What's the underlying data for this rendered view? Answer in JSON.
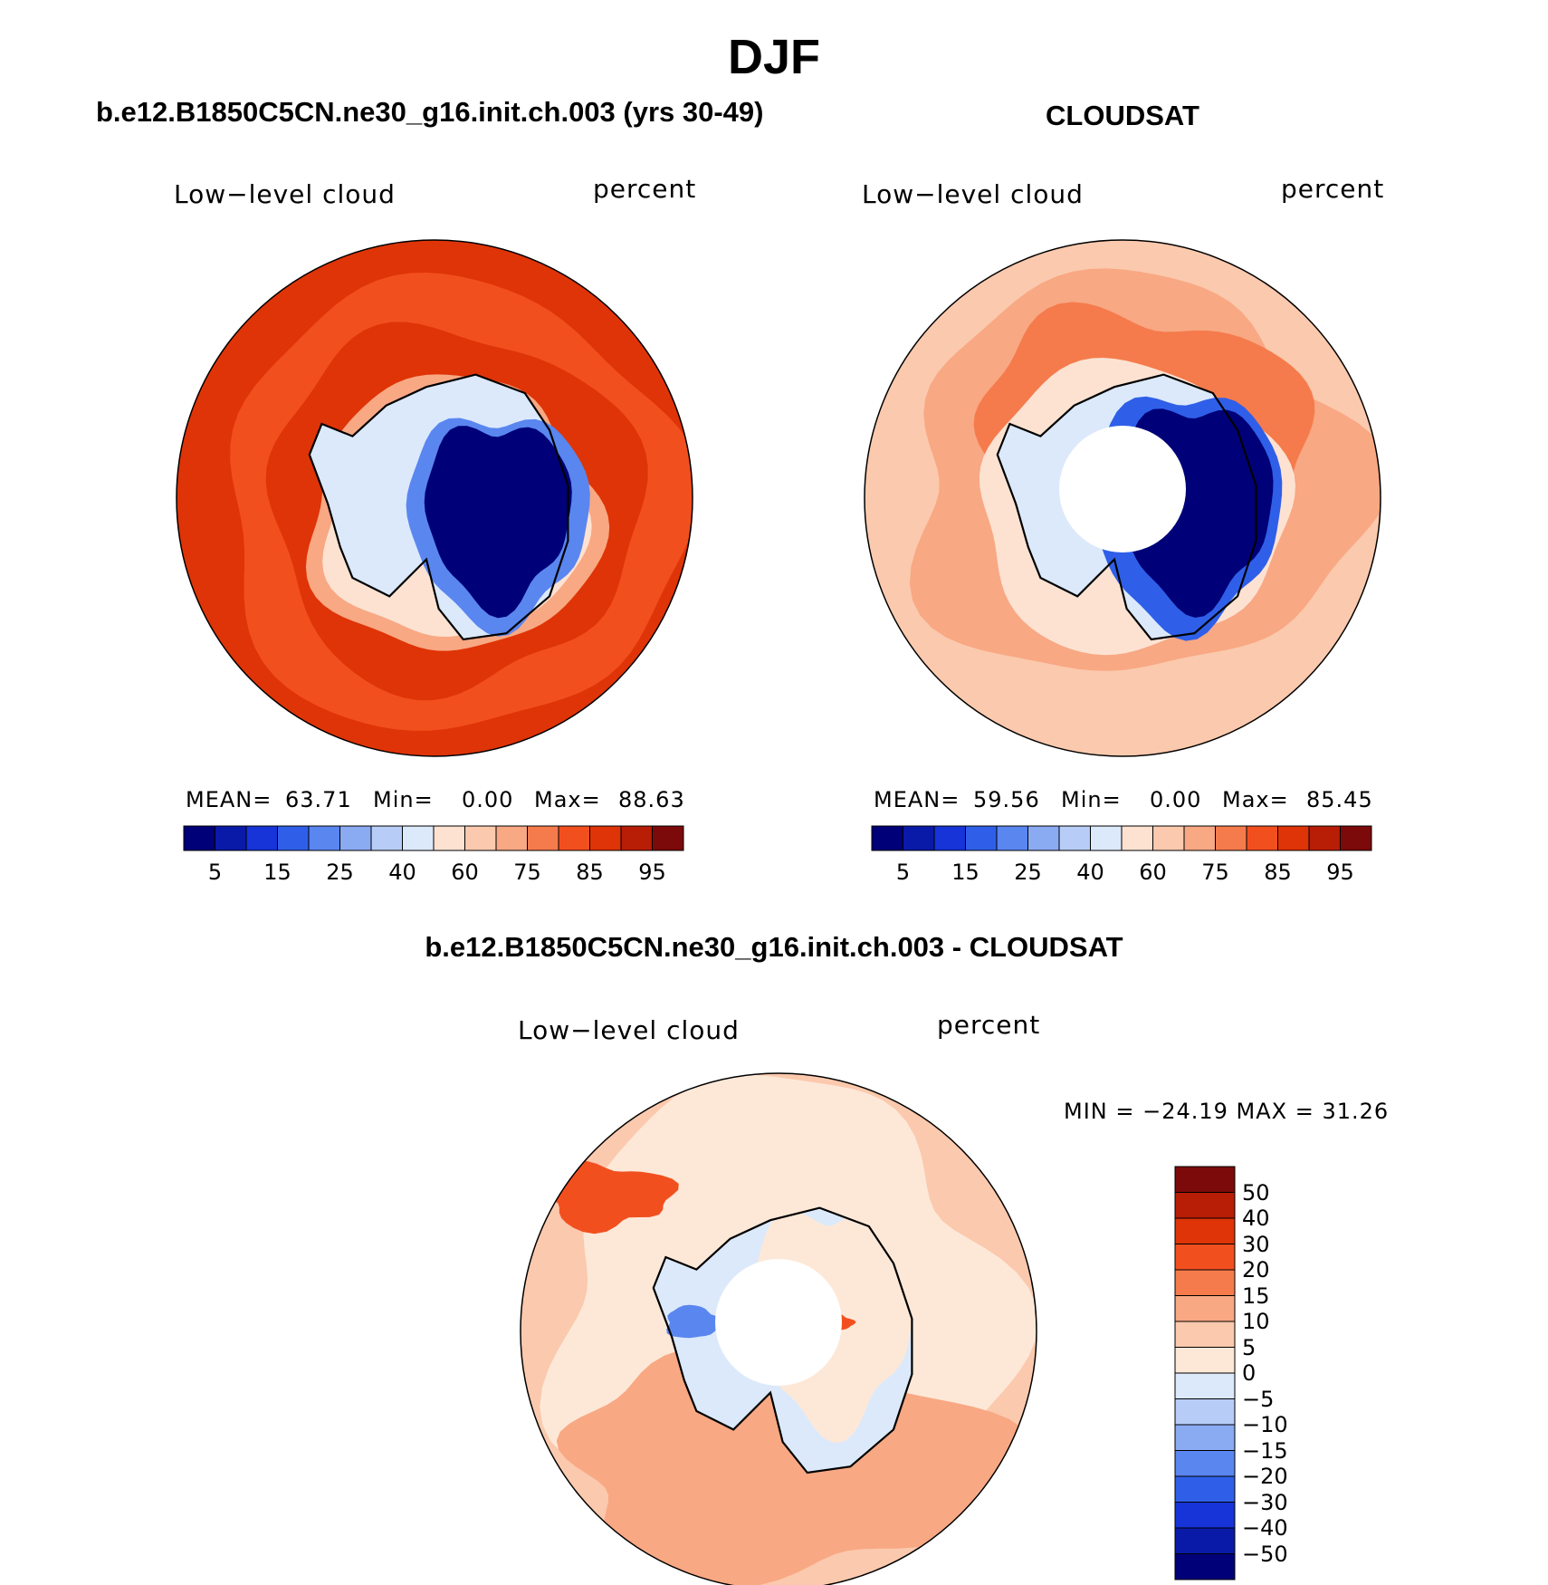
{
  "title": "DJF",
  "colors": {
    "palette": [
      "#000078",
      "#0a1aa8",
      "#1634d8",
      "#2f5fe8",
      "#5a86f0",
      "#8aaaf2",
      "#b7cdf7",
      "#dce9fb",
      "#fde2d2",
      "#fbc9ad",
      "#f8a883",
      "#f57b4c",
      "#f24f1f",
      "#df3407",
      "#b81d05",
      "#7d0a0a"
    ],
    "diff_palette": [
      "#000078",
      "#0a1aa8",
      "#1634d8",
      "#2f5fe8",
      "#5a86f0",
      "#8aaaf2",
      "#b7cdf7",
      "#dce9fb",
      "#fde8d8",
      "#fbc9ad",
      "#f8a883",
      "#f57b4c",
      "#f24f1f",
      "#df3407",
      "#b81d05",
      "#7d0a0a"
    ]
  },
  "panels": {
    "model": {
      "title": "b.e12.B1850C5CN.ne30_g16.init.ch.003 (yrs 30-49)",
      "left_label": "Low−level cloud",
      "right_label": "percent",
      "mean_label": "MEAN=",
      "mean": "63.71",
      "min_label": "Min=",
      "min": "0.00",
      "max_label": "Max=",
      "max": "88.63"
    },
    "obs": {
      "title": "CLOUDSAT",
      "left_label": "Low−level cloud",
      "right_label": "percent",
      "mean_label": "MEAN=",
      "mean": "59.56",
      "min_label": "Min=",
      "min": "0.00",
      "max_label": "Max=",
      "max": "85.45"
    },
    "diff": {
      "title": "b.e12.B1850C5CN.ne30_g16.init.ch.003 - CLOUDSAT",
      "left_label": "Low−level cloud",
      "right_label": "percent",
      "minmax": "MIN = −24.19 MAX =   31.26"
    }
  },
  "colorbar_ticks": [
    "5",
    "15",
    "25",
    "40",
    "60",
    "75",
    "85",
    "95"
  ],
  "diff_colorbar_ticks": [
    "50",
    "40",
    "30",
    "20",
    "15",
    "10",
    "5",
    "0",
    "−5",
    "−10",
    "−15",
    "−20",
    "−30",
    "−40",
    "−50"
  ]
}
